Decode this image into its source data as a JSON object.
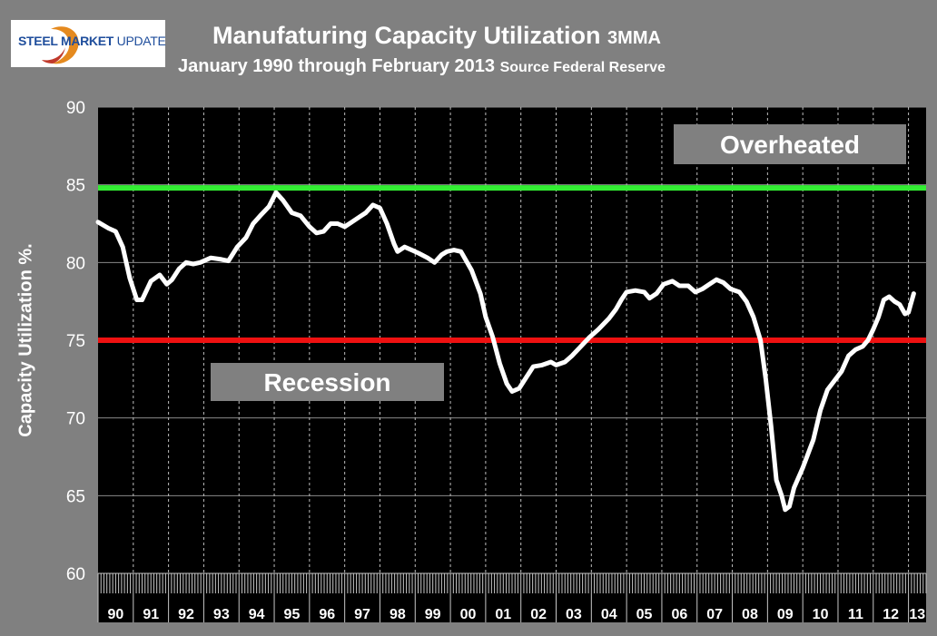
{
  "logo": {
    "text_bold": "STEEL MARKET",
    "text_regular": "UPDATE"
  },
  "title": {
    "main": "Manufaturing Capacity Utilization",
    "suffix": "3MMA"
  },
  "subtitle": {
    "main": "January 1990 through February 2013",
    "source": "Source Federal Reserve"
  },
  "colors": {
    "background": "#808080",
    "plot": "#000000",
    "line": "#ffffff",
    "overheated_line": "#33ee33",
    "recession_line": "#ee1111",
    "label_box": "#808080"
  },
  "chart_data": {
    "type": "line",
    "title": "Manufaturing Capacity Utilization 3MMA",
    "ylabel": "Capacity Utilization %.",
    "xlabel": "",
    "ylim": [
      60,
      90
    ],
    "yticks": [
      60,
      65,
      70,
      75,
      80,
      85,
      90
    ],
    "xlim": [
      1990,
      2013.5
    ],
    "xticklabels": [
      "90",
      "91",
      "92",
      "93",
      "94",
      "95",
      "96",
      "97",
      "98",
      "99",
      "00",
      "01",
      "02",
      "03",
      "04",
      "05",
      "06",
      "07",
      "08",
      "09",
      "10",
      "11",
      "12",
      "13"
    ],
    "grid": true,
    "reference_lines": [
      {
        "value": 84.8,
        "label": "Overheated",
        "color": "#33ee33"
      },
      {
        "value": 75.0,
        "label": "Recession",
        "color": "#ee1111"
      }
    ],
    "series": [
      {
        "values": [
          [
            1990.0,
            82.6
          ],
          [
            1990.3,
            82.2
          ],
          [
            1990.5,
            82.0
          ],
          [
            1990.7,
            81.0
          ],
          [
            1990.9,
            79.0
          ],
          [
            1991.1,
            77.6
          ],
          [
            1991.25,
            77.6
          ],
          [
            1991.5,
            78.8
          ],
          [
            1991.75,
            79.2
          ],
          [
            1991.95,
            78.6
          ],
          [
            1992.1,
            78.9
          ],
          [
            1992.3,
            79.6
          ],
          [
            1992.5,
            80.0
          ],
          [
            1992.7,
            79.9
          ],
          [
            1992.9,
            80.0
          ],
          [
            1993.2,
            80.3
          ],
          [
            1993.5,
            80.2
          ],
          [
            1993.7,
            80.1
          ],
          [
            1993.95,
            81.0
          ],
          [
            1994.2,
            81.6
          ],
          [
            1994.4,
            82.5
          ],
          [
            1994.6,
            83.0
          ],
          [
            1994.85,
            83.6
          ],
          [
            1995.05,
            84.5
          ],
          [
            1995.25,
            84.0
          ],
          [
            1995.5,
            83.2
          ],
          [
            1995.75,
            83.0
          ],
          [
            1996.0,
            82.3
          ],
          [
            1996.2,
            81.9
          ],
          [
            1996.4,
            82.0
          ],
          [
            1996.6,
            82.5
          ],
          [
            1996.8,
            82.5
          ],
          [
            1997.0,
            82.3
          ],
          [
            1997.2,
            82.6
          ],
          [
            1997.4,
            82.9
          ],
          [
            1997.6,
            83.2
          ],
          [
            1997.8,
            83.7
          ],
          [
            1998.0,
            83.5
          ],
          [
            1998.2,
            82.5
          ],
          [
            1998.4,
            81.2
          ],
          [
            1998.5,
            80.7
          ],
          [
            1998.7,
            81.0
          ],
          [
            1998.9,
            80.8
          ],
          [
            1999.1,
            80.6
          ],
          [
            1999.35,
            80.3
          ],
          [
            1999.55,
            80.0
          ],
          [
            1999.75,
            80.5
          ],
          [
            1999.9,
            80.7
          ],
          [
            2000.1,
            80.8
          ],
          [
            2000.3,
            80.7
          ],
          [
            2000.6,
            79.5
          ],
          [
            2000.85,
            78.0
          ],
          [
            2001.0,
            76.5
          ],
          [
            2001.2,
            75.2
          ],
          [
            2001.4,
            73.5
          ],
          [
            2001.6,
            72.2
          ],
          [
            2001.75,
            71.7
          ],
          [
            2001.95,
            71.9
          ],
          [
            2002.15,
            72.6
          ],
          [
            2002.35,
            73.3
          ],
          [
            2002.6,
            73.4
          ],
          [
            2002.85,
            73.6
          ],
          [
            2003.0,
            73.4
          ],
          [
            2003.25,
            73.6
          ],
          [
            2003.45,
            74.0
          ],
          [
            2003.7,
            74.6
          ],
          [
            2003.95,
            75.2
          ],
          [
            2004.2,
            75.7
          ],
          [
            2004.5,
            76.4
          ],
          [
            2004.7,
            77.0
          ],
          [
            2004.85,
            77.6
          ],
          [
            2005.0,
            78.1
          ],
          [
            2005.25,
            78.2
          ],
          [
            2005.5,
            78.1
          ],
          [
            2005.65,
            77.7
          ],
          [
            2005.85,
            78.0
          ],
          [
            2006.05,
            78.6
          ],
          [
            2006.3,
            78.8
          ],
          [
            2006.5,
            78.5
          ],
          [
            2006.75,
            78.5
          ],
          [
            2006.95,
            78.1
          ],
          [
            2007.15,
            78.3
          ],
          [
            2007.35,
            78.6
          ],
          [
            2007.55,
            78.9
          ],
          [
            2007.75,
            78.7
          ],
          [
            2007.95,
            78.3
          ],
          [
            2008.2,
            78.1
          ],
          [
            2008.4,
            77.5
          ],
          [
            2008.6,
            76.5
          ],
          [
            2008.8,
            75.0
          ],
          [
            2008.95,
            72.5
          ],
          [
            2009.1,
            69.5
          ],
          [
            2009.25,
            66.0
          ],
          [
            2009.4,
            65.0
          ],
          [
            2009.5,
            64.1
          ],
          [
            2009.62,
            64.3
          ],
          [
            2009.75,
            65.5
          ],
          [
            2010.0,
            66.8
          ],
          [
            2010.3,
            68.6
          ],
          [
            2010.5,
            70.5
          ],
          [
            2010.7,
            71.8
          ],
          [
            2010.9,
            72.4
          ],
          [
            2011.1,
            73.0
          ],
          [
            2011.3,
            74.0
          ],
          [
            2011.5,
            74.4
          ],
          [
            2011.7,
            74.6
          ],
          [
            2011.85,
            75.0
          ],
          [
            2012.0,
            75.7
          ],
          [
            2012.15,
            76.5
          ],
          [
            2012.3,
            77.6
          ],
          [
            2012.45,
            77.8
          ],
          [
            2012.6,
            77.5
          ],
          [
            2012.75,
            77.3
          ],
          [
            2012.9,
            76.7
          ],
          [
            2013.0,
            76.8
          ],
          [
            2013.05,
            77.2
          ],
          [
            2013.15,
            78.0
          ]
        ]
      }
    ]
  }
}
